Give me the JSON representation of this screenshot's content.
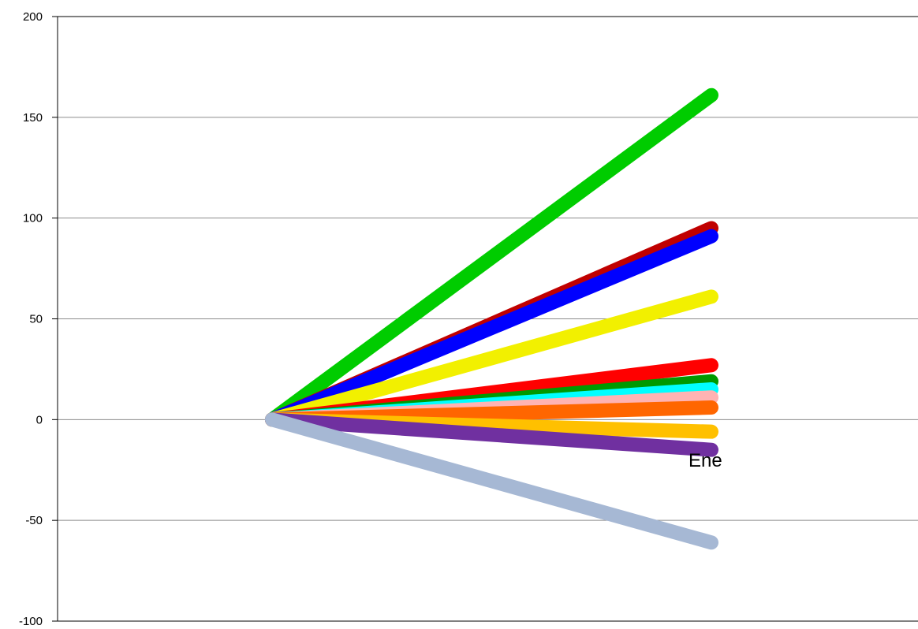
{
  "chart_data": {
    "type": "line",
    "title": "",
    "xlabel": "",
    "ylabel": "",
    "ylim": [
      -100,
      200
    ],
    "yticks": [
      200,
      150,
      100,
      50,
      0,
      -50,
      -100
    ],
    "grid": true,
    "legend": "none",
    "annotation": "Ene",
    "series": [
      {
        "color": "#00cc00",
        "values": [
          0,
          161
        ]
      },
      {
        "color": "#c00000",
        "values": [
          0,
          95
        ]
      },
      {
        "color": "#0000ff",
        "values": [
          0,
          91
        ]
      },
      {
        "color": "#f2f000",
        "values": [
          0,
          61
        ]
      },
      {
        "color": "#ff0000",
        "values": [
          0,
          27
        ]
      },
      {
        "color": "#009900",
        "values": [
          0,
          19
        ]
      },
      {
        "color": "#00ffff",
        "values": [
          0,
          15
        ]
      },
      {
        "color": "#ffb3b3",
        "values": [
          0,
          11
        ]
      },
      {
        "color": "#ff6600",
        "values": [
          0,
          6
        ]
      },
      {
        "color": "#ffc000",
        "values": [
          0,
          -6
        ]
      },
      {
        "color": "#7030a0",
        "values": [
          0,
          -15
        ]
      },
      {
        "color": "#a6b8d4",
        "values": [
          0,
          -61
        ]
      }
    ]
  }
}
